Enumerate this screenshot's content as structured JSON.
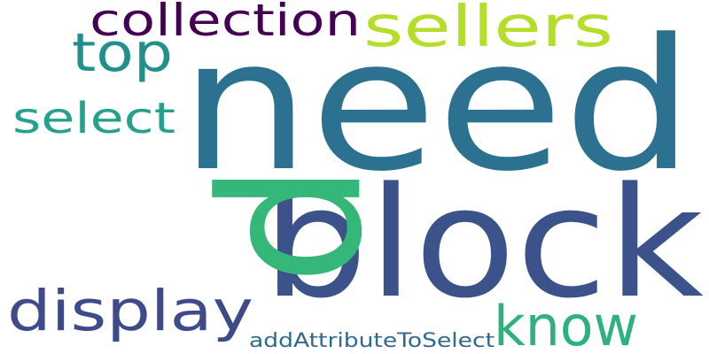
{
  "words": [
    {
      "id": "need",
      "text": "need",
      "color": "#2c7290"
    },
    {
      "id": "block",
      "text": "block",
      "color": "#3b528b"
    },
    {
      "id": "p",
      "text": "p",
      "color": "#35b779"
    },
    {
      "id": "sellers",
      "text": "sellers",
      "color": "#b5de2b"
    },
    {
      "id": "collection",
      "text": "collection",
      "color": "#440154"
    },
    {
      "id": "top",
      "text": "top",
      "color": "#21908d"
    },
    {
      "id": "select",
      "text": "select",
      "color": "#25a18e"
    },
    {
      "id": "display",
      "text": "display",
      "color": "#3e4a89"
    },
    {
      "id": "know",
      "text": "know",
      "color": "#2db27d"
    },
    {
      "id": "addAttributeToSelect",
      "text": "addAttributeToSelect",
      "color": "#31688e"
    }
  ]
}
